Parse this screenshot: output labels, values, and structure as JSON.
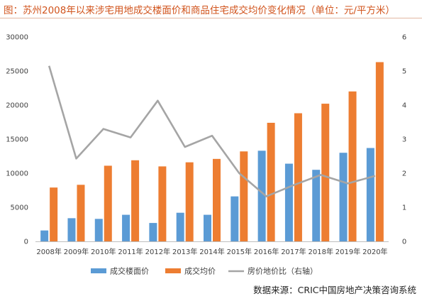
{
  "title": "图：苏州2008年以来涉宅用地成交楼面价和商品住宅成交均价变化情况（单位：元/平方米）",
  "source": "数据来源：CRIC中国房地产决策咨询系统",
  "colors": {
    "title": "#d1541d",
    "floor_price": "#5b9bd5",
    "avg_price": "#ed7d31",
    "ratio": "#a5a5a5",
    "axis": "#bfbfbf"
  },
  "chart_data": {
    "type": "bar",
    "categories": [
      "2008年",
      "2009年",
      "2010年",
      "2011年",
      "2012年",
      "2013年",
      "2014年",
      "2015年",
      "2016年",
      "2017年",
      "2018年",
      "2019年",
      "2020年"
    ],
    "series": [
      {
        "name": "成交楼面价",
        "type": "bar",
        "axis": "left",
        "values": [
          1600,
          3400,
          3300,
          3900,
          2700,
          4200,
          3900,
          6600,
          13300,
          11400,
          10500,
          13000,
          13700
        ]
      },
      {
        "name": "成交均价",
        "type": "bar",
        "axis": "left",
        "values": [
          7900,
          8300,
          11100,
          11900,
          11000,
          11600,
          12100,
          13200,
          17400,
          18800,
          20200,
          22000,
          26300
        ]
      },
      {
        "name": "房价地价比（右轴）",
        "type": "line",
        "axis": "right",
        "values": [
          5.15,
          2.43,
          3.3,
          3.05,
          4.13,
          2.77,
          3.1,
          2.0,
          1.32,
          1.65,
          1.95,
          1.7,
          1.92
        ]
      }
    ],
    "y_left": {
      "ylim": [
        0,
        30000
      ],
      "ticks": [
        "0",
        "5000",
        "10000",
        "15000",
        "20000",
        "25000",
        "30000"
      ]
    },
    "y_right": {
      "ylim": [
        0,
        6
      ],
      "ticks": [
        "0",
        "1",
        "2",
        "3",
        "4",
        "5",
        "6"
      ]
    },
    "grid": false,
    "legend": "bottom"
  }
}
